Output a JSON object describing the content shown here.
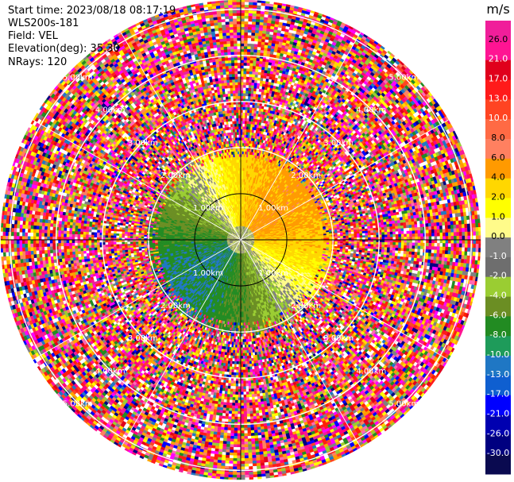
{
  "info": {
    "start_time": "Start time: 2023/08/18 08:17:19",
    "site": "WLS200s-181",
    "field": "Field: VEL",
    "elevation": "Elevation(deg): 35.30",
    "nrays": "NRays: 120"
  },
  "chart_data": {
    "type": "heatmap",
    "projection": "polar-ppi",
    "field": "VEL",
    "unit": "m/s",
    "rays": 120,
    "range_rings": [
      {
        "value_km": 1.0,
        "label": "1.00km"
      },
      {
        "value_km": 2.0,
        "label": "2.00km"
      },
      {
        "value_km": 3.0,
        "label": "3.00km"
      },
      {
        "value_km": 4.0,
        "label": "4.00km"
      },
      {
        "value_km": 5.0,
        "label": "5.00km"
      }
    ],
    "max_range_km": 5.2,
    "colorbar": {
      "unit_label": "m/s",
      "ticks": [
        "26.0",
        "21.0",
        "17.0",
        "13.0",
        "10.0",
        "8.0",
        "6.0",
        "4.0",
        "2.0",
        "1.0",
        "0.0",
        "-1.0",
        "-2.0",
        "-4.0",
        "-6.0",
        "-8.0",
        "-10.0",
        "-13.0",
        "-17.0",
        "-21.0",
        "-26.0",
        "-30.0"
      ],
      "colors": [
        "#f01e9a",
        "#ff1493",
        "#e0001c",
        "#ff1a1a",
        "#ff4422",
        "#ff6a44",
        "#ff8060",
        "#ff9a00",
        "#ffd700",
        "#ffff00",
        "#fffb8a",
        "#808080",
        "#6e6e6e",
        "#9acd32",
        "#6b8e23",
        "#228b22",
        "#1e9b5a",
        "#1f77c4",
        "#0f5fd0",
        "#0000ff",
        "#0000b0",
        "#000080",
        "#0a0a50"
      ]
    },
    "near_field_pattern": "mixed positive/negative radial velocity; positive (yellow-orange) to north-east, negative (green-blue) to south-west, noise beyond ~1.9 km"
  }
}
